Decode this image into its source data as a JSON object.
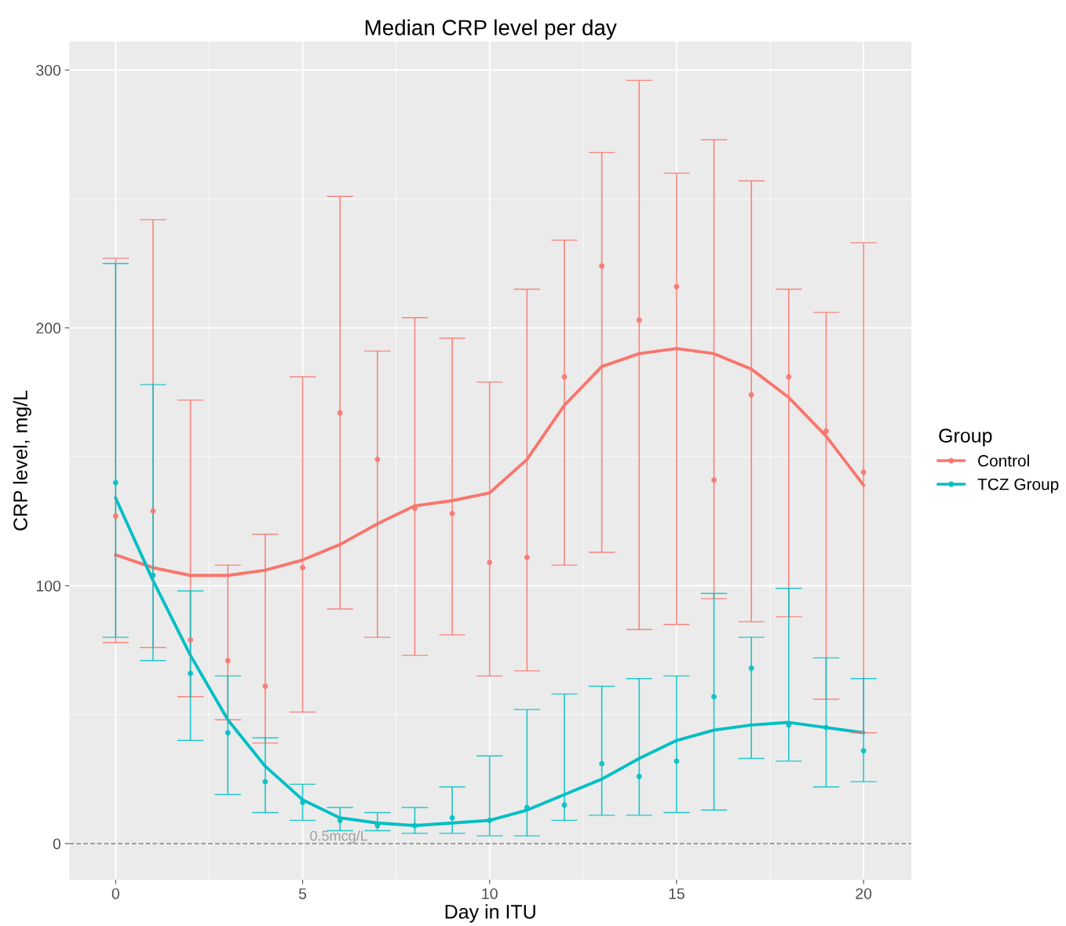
{
  "chart_data": {
    "type": "scatter",
    "title": "Median CRP level per day",
    "xlabel": "Day in ITU",
    "ylabel": "CRP level, mg/L",
    "legend_title": "Group",
    "x": [
      0,
      1,
      2,
      3,
      4,
      5,
      6,
      7,
      8,
      9,
      10,
      11,
      12,
      13,
      14,
      15,
      16,
      17,
      18,
      19,
      20
    ],
    "series": [
      {
        "name": "Control",
        "marker": "circle",
        "color": "#f8766d",
        "values": [
          127,
          129,
          79,
          71,
          61,
          107,
          167,
          149,
          130,
          128,
          109,
          111,
          181,
          224,
          203,
          216,
          141,
          174,
          181,
          160,
          144
        ],
        "errors": [
          [
            78,
            227
          ],
          [
            76,
            242
          ],
          [
            57,
            172
          ],
          [
            48,
            108
          ],
          [
            39,
            120
          ],
          [
            51,
            181
          ],
          [
            91,
            251
          ],
          [
            80,
            191
          ],
          [
            73,
            204
          ],
          [
            81,
            196
          ],
          [
            65,
            179
          ],
          [
            67,
            215
          ],
          [
            108,
            234
          ],
          [
            113,
            268
          ],
          [
            83,
            296
          ],
          [
            85,
            260
          ],
          [
            95,
            273
          ],
          [
            86,
            257
          ],
          [
            88,
            215
          ],
          [
            56,
            206
          ],
          [
            43,
            233
          ]
        ]
      },
      {
        "name": "TCZ Group",
        "marker": "circle",
        "color": "#00bfc4",
        "values": [
          140,
          104,
          66,
          43,
          24,
          16,
          9,
          7,
          7,
          10,
          9,
          14,
          15,
          31,
          26,
          32,
          57,
          68,
          46,
          45,
          36
        ],
        "errors": [
          [
            80,
            225
          ],
          [
            71,
            178
          ],
          [
            40,
            98
          ],
          [
            19,
            65
          ],
          [
            12,
            41
          ],
          [
            9,
            23
          ],
          [
            5,
            14
          ],
          [
            5,
            12
          ],
          [
            4,
            14
          ],
          [
            4,
            22
          ],
          [
            3,
            34
          ],
          [
            3,
            52
          ],
          [
            9,
            58
          ],
          [
            11,
            61
          ],
          [
            11,
            64
          ],
          [
            12,
            65
          ],
          [
            13,
            97
          ],
          [
            33,
            80
          ],
          [
            32,
            99
          ],
          [
            22,
            72
          ],
          [
            24,
            64
          ]
        ]
      },
      {
        "type": "line",
        "color": "#f8766d",
        "x": [
          0,
          1,
          2,
          3,
          4,
          5,
          6,
          7,
          8,
          9,
          10,
          11,
          12,
          13,
          14,
          15,
          16,
          17,
          18,
          19,
          20
        ],
        "values": [
          112,
          107,
          104,
          104,
          106,
          110,
          116,
          124,
          131,
          133,
          136,
          149,
          170,
          185,
          190,
          192,
          190,
          184,
          173,
          158,
          139
        ]
      },
      {
        "type": "line",
        "color": "#00bfc4",
        "x": [
          0,
          1,
          2,
          3,
          4,
          5,
          6,
          7,
          8,
          9,
          10,
          11,
          12,
          13,
          14,
          15,
          16,
          17,
          18,
          19,
          20
        ],
        "values": [
          134,
          102,
          73,
          48,
          30,
          17,
          10,
          8,
          7,
          8,
          9,
          13,
          19,
          25,
          33,
          40,
          44,
          46,
          47,
          45,
          43
        ]
      }
    ],
    "ref_lines": [
      {
        "axis": "y",
        "value": 0,
        "label": "0.5mcg/L",
        "color": "#808080",
        "line_style": "dashed"
      }
    ],
    "xlim": [
      -1.24,
      21.28
    ],
    "ylim": [
      -14,
      311
    ],
    "xticks": [
      0,
      5,
      10,
      15,
      20
    ],
    "yticks": [
      0,
      100,
      200,
      300
    ],
    "grid": true,
    "legend": "right"
  }
}
